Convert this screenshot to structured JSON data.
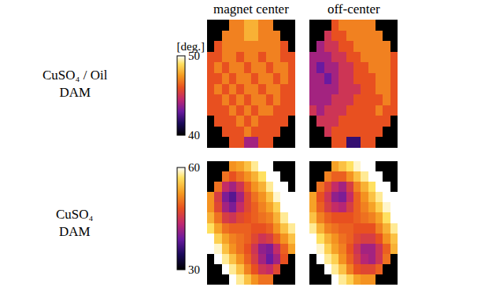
{
  "chart_data": {
    "type": "heatmap",
    "tick_labels": false,
    "columns": [
      "magnet center",
      "off-center"
    ],
    "rows": [
      {
        "label": [
          "CuSO₄ / Oil",
          "DAM"
        ],
        "colorbar_title": "[deg.]",
        "zlim": [
          40,
          50
        ],
        "zticks": [
          40,
          50
        ],
        "cells": [
          [
            [
              null,
              null,
              null,
              47,
              47,
              48,
              48,
              47,
              47,
              null,
              null,
              null
            ],
            [
              null,
              null,
              47,
              47,
              47,
              48,
              48,
              47,
              47,
              47,
              null,
              null
            ],
            [
              null,
              46,
              47,
              47,
              47,
              47,
              47,
              47,
              47,
              47,
              46,
              null
            ],
            [
              46,
              46,
              47,
              47,
              46,
              47,
              47,
              46,
              47,
              47,
              46,
              46
            ],
            [
              46,
              47,
              46,
              47,
              47,
              46,
              47,
              47,
              46,
              47,
              47,
              46
            ],
            [
              46,
              46,
              47,
              46,
              47,
              47,
              46,
              47,
              47,
              46,
              47,
              46
            ],
            [
              46,
              47,
              46,
              47,
              46,
              47,
              47,
              46,
              47,
              47,
              46,
              46
            ],
            [
              46,
              46,
              47,
              46,
              47,
              46,
              47,
              47,
              46,
              47,
              46,
              46
            ],
            [
              46,
              46,
              46,
              47,
              46,
              47,
              46,
              47,
              47,
              46,
              46,
              46
            ],
            [
              null,
              46,
              46,
              46,
              47,
              46,
              47,
              46,
              46,
              46,
              46,
              null
            ],
            [
              null,
              null,
              46,
              46,
              46,
              47,
              46,
              46,
              46,
              46,
              null,
              null
            ],
            [
              null,
              null,
              null,
              46,
              46,
              44,
              44,
              46,
              46,
              null,
              null,
              null
            ]
          ],
          [
            [
              null,
              null,
              null,
              46,
              47,
              47,
              47,
              47,
              47,
              null,
              null,
              null
            ],
            [
              null,
              null,
              45,
              46,
              46,
              47,
              47,
              47,
              47,
              47,
              null,
              null
            ],
            [
              null,
              44,
              45,
              45,
              46,
              46,
              47,
              47,
              47,
              47,
              47,
              null
            ],
            [
              44,
              44,
              44,
              45,
              45,
              46,
              46,
              47,
              47,
              47,
              47,
              46
            ],
            [
              44,
              43,
              44,
              44,
              45,
              45,
              46,
              46,
              47,
              47,
              47,
              46
            ],
            [
              44,
              44,
              43,
              44,
              45,
              45,
              46,
              46,
              46,
              47,
              47,
              46
            ],
            [
              44,
              44,
              44,
              44,
              45,
              45,
              45,
              46,
              46,
              47,
              47,
              46
            ],
            [
              44,
              44,
              44,
              45,
              45,
              45,
              46,
              46,
              46,
              46,
              47,
              46
            ],
            [
              45,
              44,
              45,
              45,
              45,
              46,
              46,
              46,
              46,
              47,
              46,
              46
            ],
            [
              null,
              45,
              45,
              45,
              46,
              46,
              46,
              46,
              46,
              46,
              46,
              null
            ],
            [
              null,
              null,
              45,
              46,
              46,
              46,
              46,
              46,
              46,
              46,
              null,
              null
            ],
            [
              null,
              null,
              null,
              46,
              46,
              42,
              42,
              46,
              46,
              null,
              null,
              null
            ]
          ]
        ]
      },
      {
        "label": [
          "CuSO₄",
          "DAM"
        ],
        "zlim": [
          30,
          60
        ],
        "zticks": [
          30,
          60
        ],
        "cells": [
          [
            [
              null,
              null,
              null,
              52,
              53,
              55,
              58,
              60,
              60,
              null,
              null,
              null
            ],
            [
              null,
              null,
              50,
              48,
              50,
              52,
              54,
              57,
              60,
              60,
              null,
              null
            ],
            [
              null,
              50,
              44,
              42,
              45,
              49,
              52,
              54,
              58,
              60,
              60,
              null
            ],
            [
              52,
              46,
              40,
              38,
              42,
              47,
              50,
              52,
              55,
              59,
              60,
              60
            ],
            [
              52,
              47,
              42,
              40,
              44,
              47,
              49,
              51,
              53,
              56,
              60,
              60
            ],
            [
              54,
              50,
              46,
              45,
              47,
              48,
              49,
              50,
              51,
              54,
              58,
              60
            ],
            [
              57,
              53,
              50,
              49,
              49,
              49,
              48,
              48,
              49,
              52,
              55,
              58
            ],
            [
              60,
              56,
              53,
              51,
              50,
              49,
              47,
              45,
              46,
              49,
              52,
              55
            ],
            [
              60,
              59,
              55,
              52,
              50,
              48,
              45,
              41,
              40,
              44,
              49,
              53
            ],
            [
              null,
              60,
              58,
              55,
              52,
              49,
              46,
              42,
              39,
              42,
              48,
              null
            ],
            [
              null,
              null,
              60,
              58,
              55,
              51,
              48,
              45,
              44,
              47,
              null,
              null
            ],
            [
              null,
              null,
              null,
              60,
              58,
              55,
              52,
              50,
              50,
              null,
              null,
              null
            ]
          ],
          [
            [
              null,
              null,
              null,
              53,
              55,
              57,
              59,
              60,
              60,
              null,
              null,
              null
            ],
            [
              null,
              null,
              51,
              49,
              49,
              52,
              55,
              58,
              60,
              60,
              null,
              null
            ],
            [
              null,
              50,
              47,
              44,
              42,
              46,
              51,
              54,
              57,
              60,
              60,
              null
            ],
            [
              53,
              48,
              45,
              41,
              40,
              44,
              49,
              52,
              55,
              58,
              60,
              60
            ],
            [
              53,
              49,
              46,
              44,
              43,
              46,
              49,
              51,
              53,
              56,
              59,
              60
            ],
            [
              55,
              51,
              49,
              48,
              48,
              48,
              49,
              50,
              51,
              53,
              57,
              60
            ],
            [
              58,
              54,
              51,
              50,
              49,
              49,
              48,
              48,
              48,
              51,
              54,
              58
            ],
            [
              60,
              57,
              54,
              52,
              50,
              49,
              47,
              46,
              46,
              48,
              52,
              55
            ],
            [
              60,
              59,
              56,
              53,
              51,
              48,
              45,
              42,
              42,
              45,
              49,
              54
            ],
            [
              null,
              60,
              58,
              56,
              52,
              49,
              46,
              43,
              42,
              45,
              50,
              null
            ],
            [
              null,
              null,
              60,
              58,
              55,
              51,
              48,
              47,
              47,
              49,
              null,
              null
            ],
            [
              null,
              null,
              null,
              60,
              58,
              56,
              53,
              52,
              52,
              null,
              null,
              null
            ]
          ]
        ]
      }
    ]
  }
}
